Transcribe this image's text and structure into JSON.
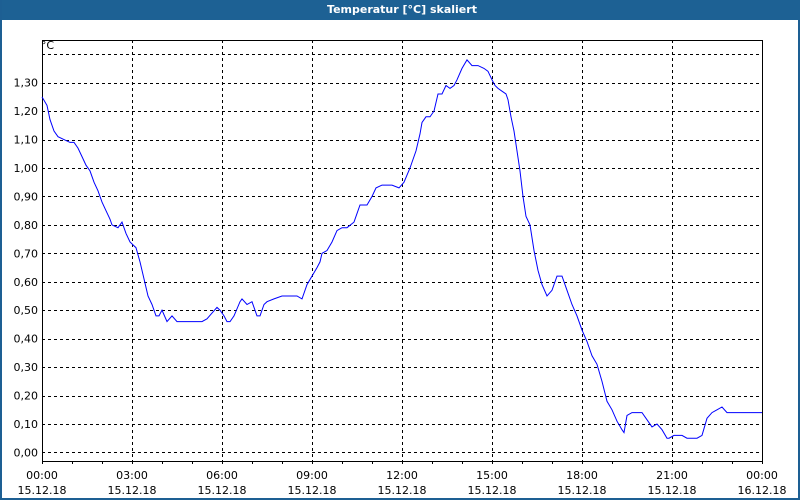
{
  "window": {
    "title": "Temperatur [°C] skaliert",
    "frame_color": "#1d6194"
  },
  "chart_data": {
    "type": "line",
    "title": "Temperatur [°C] skaliert",
    "ylabel": "°C",
    "ylim": [
      -0.03,
      1.45
    ],
    "yticks": [
      0.0,
      0.1,
      0.2,
      0.3,
      0.4,
      0.5,
      0.6,
      0.7,
      0.8,
      0.9,
      1.0,
      1.1,
      1.2,
      1.3
    ],
    "ytick_labels": [
      "0,00",
      "0,10",
      "0,20",
      "0,30",
      "0,40",
      "0,50",
      "0,60",
      "0,70",
      "0,80",
      "0,90",
      "1,00",
      "1,10",
      "1,20",
      "1,30"
    ],
    "y_gridlines": [
      0.0,
      0.1,
      0.2,
      0.3,
      0.4,
      0.5,
      0.6,
      0.7,
      0.8,
      0.9,
      1.0,
      1.1,
      1.2,
      1.3,
      1.4
    ],
    "xlim": [
      "15.12.18 00:00",
      "16.12.18 00:00"
    ],
    "xticks": [
      {
        "time": "00:00",
        "date": "15.12.18"
      },
      {
        "time": "03:00",
        "date": "15.12.18"
      },
      {
        "time": "06:00",
        "date": "15.12.18"
      },
      {
        "time": "09:00",
        "date": "15.12.18"
      },
      {
        "time": "12:00",
        "date": "15.12.18"
      },
      {
        "time": "15:00",
        "date": "15.12.18"
      },
      {
        "time": "18:00",
        "date": "15.12.18"
      },
      {
        "time": "21:00",
        "date": "15.12.18"
      },
      {
        "time": "00:00",
        "date": "16.12.18"
      }
    ],
    "grid": true,
    "grid_style": "dashed",
    "line_color": "#0000ff",
    "x": [
      "00:00",
      "00:10",
      "00:16",
      "00:24",
      "00:32",
      "00:44",
      "00:56",
      "01:04",
      "01:12",
      "01:20",
      "01:28",
      "01:36",
      "01:44",
      "01:52",
      "02:00",
      "02:08",
      "02:16",
      "02:20",
      "02:32",
      "02:40",
      "02:48",
      "02:56",
      "03:08",
      "03:16",
      "03:24",
      "03:32",
      "03:40",
      "03:48",
      "03:54",
      "04:00",
      "04:10",
      "04:20",
      "04:30",
      "05:20",
      "05:30",
      "05:40",
      "05:50",
      "05:56",
      "06:04",
      "06:10",
      "06:16",
      "06:24",
      "06:36",
      "06:40",
      "06:50",
      "07:00",
      "07:10",
      "07:16",
      "07:24",
      "07:30",
      "07:44",
      "08:00",
      "08:10",
      "08:30",
      "08:40",
      "08:50",
      "09:00",
      "09:10",
      "09:16",
      "09:20",
      "09:30",
      "09:40",
      "09:50",
      "10:00",
      "10:10",
      "10:24",
      "10:36",
      "10:50",
      "11:00",
      "11:08",
      "11:20",
      "11:30",
      "11:40",
      "11:54",
      "12:04",
      "12:16",
      "12:28",
      "12:36",
      "12:40",
      "12:48",
      "12:56",
      "13:04",
      "13:12",
      "13:20",
      "13:28",
      "13:36",
      "13:44",
      "13:50",
      "14:00",
      "14:10",
      "14:20",
      "14:32",
      "14:44",
      "14:52",
      "15:00",
      "15:06",
      "15:12",
      "15:20",
      "15:28",
      "15:32",
      "15:38",
      "15:44",
      "15:50",
      "15:56",
      "16:02",
      "16:08",
      "16:16",
      "16:24",
      "16:32",
      "16:40",
      "16:50",
      "17:00",
      "17:10",
      "17:20",
      "17:30",
      "17:40",
      "17:50",
      "18:00",
      "18:10",
      "18:20",
      "18:30",
      "18:40",
      "18:50",
      "19:00",
      "19:10",
      "19:20",
      "19:24",
      "19:30",
      "19:40",
      "20:00",
      "20:12",
      "20:20",
      "20:30",
      "20:40",
      "20:50",
      "20:54",
      "21:04",
      "21:20",
      "21:30",
      "21:40",
      "21:50",
      "22:00",
      "22:10",
      "22:20",
      "22:30",
      "22:40",
      "22:50",
      "23:04",
      "23:10",
      "23:20",
      "24:00"
    ],
    "y": [
      1.25,
      1.22,
      1.17,
      1.13,
      1.11,
      1.1,
      1.09,
      1.09,
      1.07,
      1.04,
      1.01,
      0.99,
      0.95,
      0.92,
      0.88,
      0.85,
      0.82,
      0.8,
      0.79,
      0.81,
      0.77,
      0.74,
      0.72,
      0.67,
      0.61,
      0.55,
      0.52,
      0.48,
      0.48,
      0.5,
      0.46,
      0.48,
      0.46,
      0.46,
      0.47,
      0.49,
      0.51,
      0.5,
      0.48,
      0.46,
      0.46,
      0.48,
      0.53,
      0.54,
      0.52,
      0.53,
      0.48,
      0.48,
      0.52,
      0.53,
      0.54,
      0.55,
      0.55,
      0.55,
      0.54,
      0.59,
      0.62,
      0.65,
      0.67,
      0.7,
      0.71,
      0.74,
      0.78,
      0.79,
      0.79,
      0.81,
      0.87,
      0.87,
      0.9,
      0.93,
      0.94,
      0.94,
      0.94,
      0.93,
      0.95,
      1.0,
      1.06,
      1.12,
      1.16,
      1.18,
      1.18,
      1.2,
      1.26,
      1.26,
      1.29,
      1.28,
      1.29,
      1.31,
      1.35,
      1.38,
      1.36,
      1.36,
      1.35,
      1.34,
      1.31,
      1.29,
      1.28,
      1.27,
      1.26,
      1.24,
      1.18,
      1.13,
      1.06,
      0.99,
      0.9,
      0.83,
      0.8,
      0.71,
      0.64,
      0.59,
      0.55,
      0.57,
      0.62,
      0.62,
      0.57,
      0.52,
      0.48,
      0.43,
      0.39,
      0.34,
      0.31,
      0.25,
      0.18,
      0.15,
      0.11,
      0.08,
      0.07,
      0.13,
      0.14,
      0.14,
      0.11,
      0.09,
      0.1,
      0.08,
      0.05,
      0.05,
      0.06,
      0.06,
      0.05,
      0.05,
      0.05,
      0.06,
      0.12,
      0.14,
      0.15,
      0.16,
      0.14,
      0.14,
      0.14,
      0.14,
      0.14
    ]
  }
}
